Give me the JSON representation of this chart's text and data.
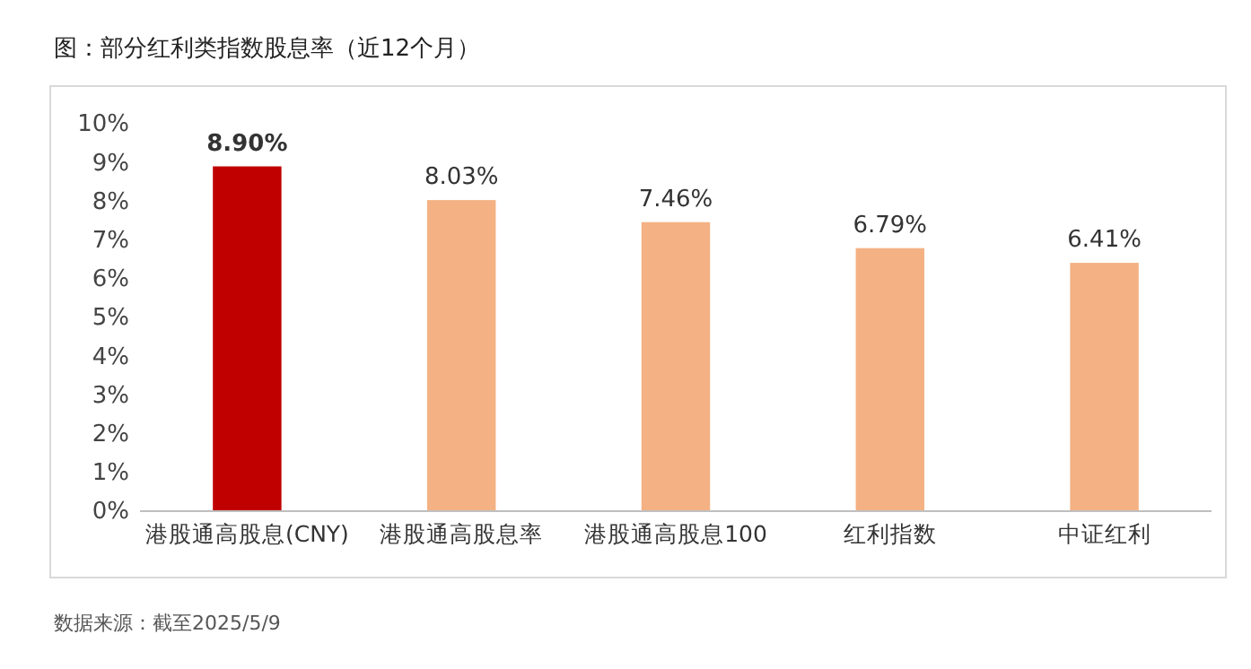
{
  "chart_data": {
    "type": "bar",
    "title": "图：部分红利类指数股息率（近12个月）",
    "categories": [
      "港股通高股息(CNY)",
      "港股通高股息率",
      "港股通高股息100",
      "红利指数",
      "中证红利"
    ],
    "values": [
      8.9,
      8.03,
      7.46,
      6.79,
      6.41
    ],
    "colors": [
      "#c00000",
      "#f4b183",
      "#f4b183",
      "#f4b183",
      "#f4b183"
    ],
    "value_labels": [
      "8.90%",
      "8.03%",
      "7.46%",
      "6.79%",
      "6.41%"
    ],
    "ylim": [
      0,
      10
    ],
    "yticks": [
      {
        "value": 0,
        "label": "0%"
      },
      {
        "value": 1,
        "label": "1%"
      },
      {
        "value": 2,
        "label": "2%"
      },
      {
        "value": 3,
        "label": "3%"
      },
      {
        "value": 4,
        "label": "4%"
      },
      {
        "value": 5,
        "label": "5%"
      },
      {
        "value": 6,
        "label": "6%"
      },
      {
        "value": 7,
        "label": "7%"
      },
      {
        "value": 8,
        "label": "8%"
      },
      {
        "value": 9,
        "label": "9%"
      },
      {
        "value": 10,
        "label": "10%"
      }
    ],
    "grid": false,
    "annotations": [
      "数据来源：截至2025/5/9"
    ]
  }
}
